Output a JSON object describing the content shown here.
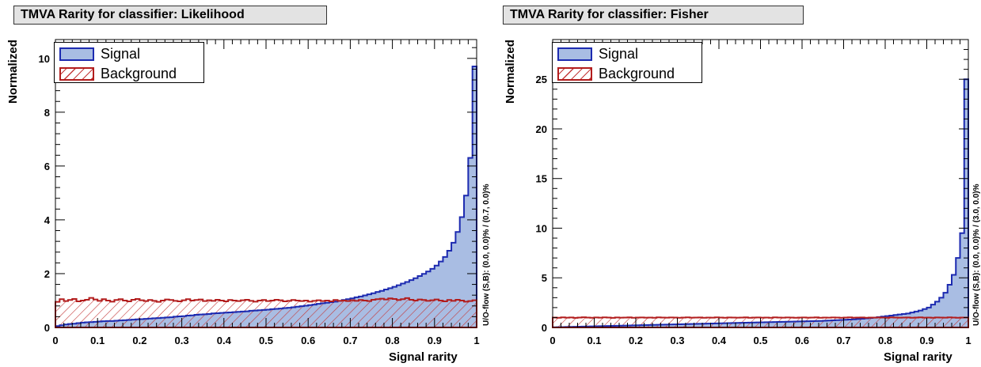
{
  "chart_data": [
    {
      "type": "histogram",
      "title": "TMVA Rarity for classifier: Likelihood",
      "xlabel": "Signal rarity",
      "ylabel": "Normalized",
      "xlim": [
        0,
        1
      ],
      "ylim": [
        0,
        10.7
      ],
      "xticks": [
        "0",
        "0.1",
        "0.2",
        "0.3",
        "0.4",
        "0.5",
        "0.6",
        "0.7",
        "0.8",
        "0.9",
        "1"
      ],
      "yticks": [
        "0",
        "2",
        "4",
        "6",
        "8",
        "10"
      ],
      "yticks_values": [
        0,
        2,
        4,
        6,
        8,
        10
      ],
      "overflow_label": "U/O-flow (S,B): (0.0, 0.0)% / (0.7, 0.0)%",
      "legend_position": "top-left",
      "bins": 100,
      "series": [
        {
          "name": "Signal",
          "fill": "#a9bde3",
          "line": "#1c2ab0",
          "values": [
            0.05,
            0.08,
            0.11,
            0.13,
            0.14,
            0.16,
            0.18,
            0.19,
            0.2,
            0.21,
            0.22,
            0.23,
            0.24,
            0.24,
            0.25,
            0.26,
            0.27,
            0.28,
            0.29,
            0.3,
            0.31,
            0.32,
            0.33,
            0.34,
            0.35,
            0.36,
            0.37,
            0.38,
            0.4,
            0.41,
            0.42,
            0.44,
            0.45,
            0.47,
            0.48,
            0.49,
            0.5,
            0.52,
            0.53,
            0.54,
            0.55,
            0.56,
            0.57,
            0.58,
            0.59,
            0.6,
            0.62,
            0.63,
            0.64,
            0.65,
            0.66,
            0.68,
            0.69,
            0.7,
            0.72,
            0.73,
            0.75,
            0.77,
            0.79,
            0.81,
            0.83,
            0.85,
            0.88,
            0.9,
            0.92,
            0.94,
            0.96,
            0.99,
            1.02,
            1.05,
            1.08,
            1.12,
            1.15,
            1.19,
            1.23,
            1.27,
            1.32,
            1.36,
            1.41,
            1.46,
            1.51,
            1.57,
            1.63,
            1.69,
            1.76,
            1.83,
            1.91,
            1.99,
            2.08,
            2.18,
            2.3,
            2.45,
            2.62,
            2.85,
            3.15,
            3.55,
            4.1,
            4.9,
            6.3,
            9.7
          ]
        },
        {
          "name": "Background",
          "line": "#b21d1d",
          "hatch": "diagonal",
          "values": [
            0.95,
            1.05,
            0.98,
            1.02,
            1.06,
            0.97,
            1.0,
            1.03,
            1.1,
            1.04,
            0.99,
            1.05,
            1.0,
            0.96,
            1.02,
            1.05,
            1.0,
            0.97,
            1.03,
            1.06,
            1.01,
            0.98,
            1.02,
            0.99,
            0.95,
            1.0,
            1.04,
            1.02,
            0.99,
            0.97,
            1.01,
            1.05,
            1.0,
            1.02,
            1.04,
            0.98,
            1.01,
            0.99,
            1.03,
            1.0,
            0.97,
            1.02,
            1.0,
            0.98,
            1.01,
            1.03,
            0.99,
            0.96,
            1.0,
            1.02,
            0.98,
            1.0,
            1.03,
            1.01,
            0.97,
            0.99,
            1.02,
            1.0,
            0.98,
            1.0,
            0.96,
            0.99,
            1.01,
            0.98,
            1.0,
            0.97,
            1.02,
            0.99,
            1.0,
            0.98,
            1.01,
            0.99,
            1.02,
            1.0,
            0.98,
            1.03,
            1.05,
            1.07,
            1.04,
            1.08,
            1.06,
            1.02,
            1.05,
            1.09,
            1.03,
            1.0,
            1.04,
            1.02,
            0.99,
            1.01,
            1.04,
            1.0,
            0.97,
            1.02,
            0.99,
            1.03,
            1.0,
            0.96,
            0.98,
            1.01
          ]
        }
      ]
    },
    {
      "type": "histogram",
      "title": "TMVA Rarity for classifier: Fisher",
      "xlabel": "Signal rarity",
      "ylabel": "Normalized",
      "xlim": [
        0,
        1
      ],
      "ylim": [
        0,
        29
      ],
      "xticks": [
        "0",
        "0.1",
        "0.2",
        "0.3",
        "0.4",
        "0.5",
        "0.6",
        "0.7",
        "0.8",
        "0.9",
        "1"
      ],
      "yticks": [
        "0",
        "5",
        "10",
        "15",
        "20",
        "25"
      ],
      "yticks_values": [
        0,
        5,
        10,
        15,
        20,
        25
      ],
      "overflow_label": "U/O-flow (S,B): (0.0, 0.0)% / (3.0, 0.0)%",
      "legend_position": "top-left",
      "bins": 100,
      "series": [
        {
          "name": "Signal",
          "fill": "#a9bde3",
          "line": "#1c2ab0",
          "values": [
            0.02,
            0.03,
            0.04,
            0.05,
            0.06,
            0.07,
            0.08,
            0.09,
            0.1,
            0.11,
            0.12,
            0.13,
            0.14,
            0.15,
            0.16,
            0.17,
            0.18,
            0.19,
            0.2,
            0.21,
            0.22,
            0.23,
            0.24,
            0.25,
            0.26,
            0.27,
            0.28,
            0.29,
            0.3,
            0.31,
            0.32,
            0.33,
            0.34,
            0.35,
            0.36,
            0.37,
            0.38,
            0.39,
            0.4,
            0.41,
            0.42,
            0.43,
            0.44,
            0.45,
            0.46,
            0.47,
            0.48,
            0.49,
            0.5,
            0.51,
            0.52,
            0.53,
            0.54,
            0.55,
            0.56,
            0.57,
            0.58,
            0.59,
            0.6,
            0.61,
            0.62,
            0.63,
            0.64,
            0.65,
            0.66,
            0.68,
            0.7,
            0.72,
            0.74,
            0.76,
            0.78,
            0.8,
            0.82,
            0.85,
            0.88,
            0.92,
            0.96,
            1.0,
            1.05,
            1.1,
            1.15,
            1.2,
            1.25,
            1.3,
            1.35,
            1.4,
            1.5,
            1.6,
            1.7,
            1.85,
            2.0,
            2.3,
            2.6,
            3.0,
            3.5,
            4.3,
            5.3,
            7.0,
            9.5,
            25.0
          ]
        },
        {
          "name": "Background",
          "line": "#b21d1d",
          "hatch": "diagonal",
          "values": [
            1.0,
            0.98,
            1.02,
            0.99,
            1.01,
            0.97,
            1.0,
            1.03,
            1.0,
            0.98,
            1.01,
            0.99,
            1.02,
            1.0,
            0.97,
            1.01,
            0.99,
            1.0,
            1.02,
            0.98,
            1.0,
            1.01,
            0.99,
            1.0,
            0.98,
            1.02,
            1.0,
            0.99,
            1.01,
            1.0,
            0.98,
            1.0,
            1.02,
            0.99,
            1.0,
            1.01,
            0.98,
            1.0,
            0.99,
            1.02,
            1.0,
            0.98,
            1.01,
            1.0,
            0.99,
            1.0,
            1.02,
            0.98,
            1.0,
            1.01,
            0.99,
            1.0,
            0.98,
            1.02,
            1.0,
            0.99,
            1.01,
            1.0,
            0.98,
            1.0,
            1.01,
            0.99,
            1.0,
            1.02,
            0.98,
            1.0,
            0.99,
            1.01,
            1.0,
            0.98,
            1.0,
            1.02,
            0.99,
            1.0,
            1.01,
            0.98,
            1.0,
            0.99,
            1.01,
            1.0,
            0.98,
            1.02,
            1.0,
            0.99,
            1.0,
            1.01,
            0.98,
            1.0,
            1.02,
            0.99,
            1.0,
            0.98,
            1.01,
            1.0,
            0.99,
            1.02,
            1.0,
            0.98,
            1.0,
            1.0
          ]
        }
      ]
    }
  ]
}
